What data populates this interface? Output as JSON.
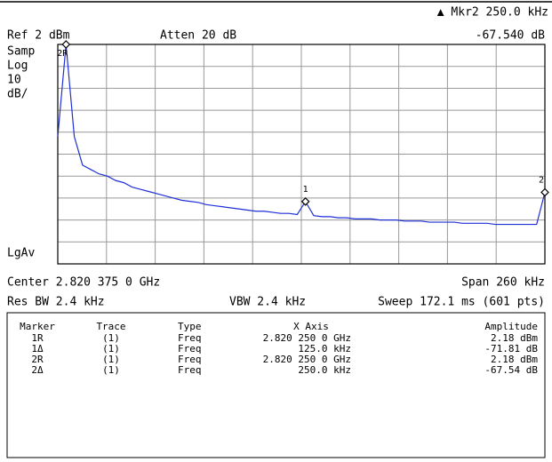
{
  "header": {
    "marker_readout": "▲ Mkr2  250.0 kHz",
    "ref": "Ref 2 dBm",
    "atten": "Atten 20 dB",
    "readout_amplitude": "-67.540 dB"
  },
  "left_labels": [
    "Samp",
    "Log",
    "10",
    "dB/"
  ],
  "lgav": "LgAv",
  "plot": {
    "ylim": [
      -98,
      2
    ],
    "marker_labels": [
      "2R",
      "1",
      "2"
    ],
    "trace": [
      -40,
      2,
      -40,
      -53,
      -55,
      -57,
      -58,
      -60,
      -61,
      -63,
      -64,
      -65,
      -66,
      -67,
      -68,
      -69,
      -69.5,
      -70,
      -71,
      -71.5,
      -72,
      -72.5,
      -73,
      -73.5,
      -74,
      -74,
      -74.5,
      -75,
      -75,
      -75.5,
      -69.6,
      -76,
      -76.5,
      -76.5,
      -77,
      -77,
      -77.5,
      -77.5,
      -77.5,
      -78,
      -78,
      -78,
      -78.5,
      -78.5,
      -78.5,
      -79,
      -79,
      -79,
      -79,
      -79.5,
      -79.5,
      -79.5,
      -79.5,
      -80,
      -80,
      -80,
      -80,
      -80,
      -80,
      -65.4
    ]
  },
  "footer": {
    "center": "Center 2.820 375 0 GHz",
    "span": "Span 260 kHz",
    "res_bw": "Res BW 2.4 kHz",
    "vbw": "VBW 2.4 kHz",
    "sweep": "Sweep 172.1 ms (601 pts)"
  },
  "table": {
    "headers": [
      "Marker",
      "Trace",
      "Type",
      "X Axis",
      "Amplitude"
    ],
    "rows": [
      [
        "1R",
        "(1)",
        "Freq",
        "2.820 250 0 GHz",
        "2.18 dBm"
      ],
      [
        "1Δ",
        "(1)",
        "Freq",
        "125.0 kHz",
        "-71.81 dB"
      ],
      [
        "2R",
        "(1)",
        "Freq",
        "2.820 250 0 GHz",
        "2.18 dBm"
      ],
      [
        "2Δ",
        "(1)",
        "Freq",
        "250.0 kHz",
        "-67.54 dB"
      ]
    ]
  }
}
